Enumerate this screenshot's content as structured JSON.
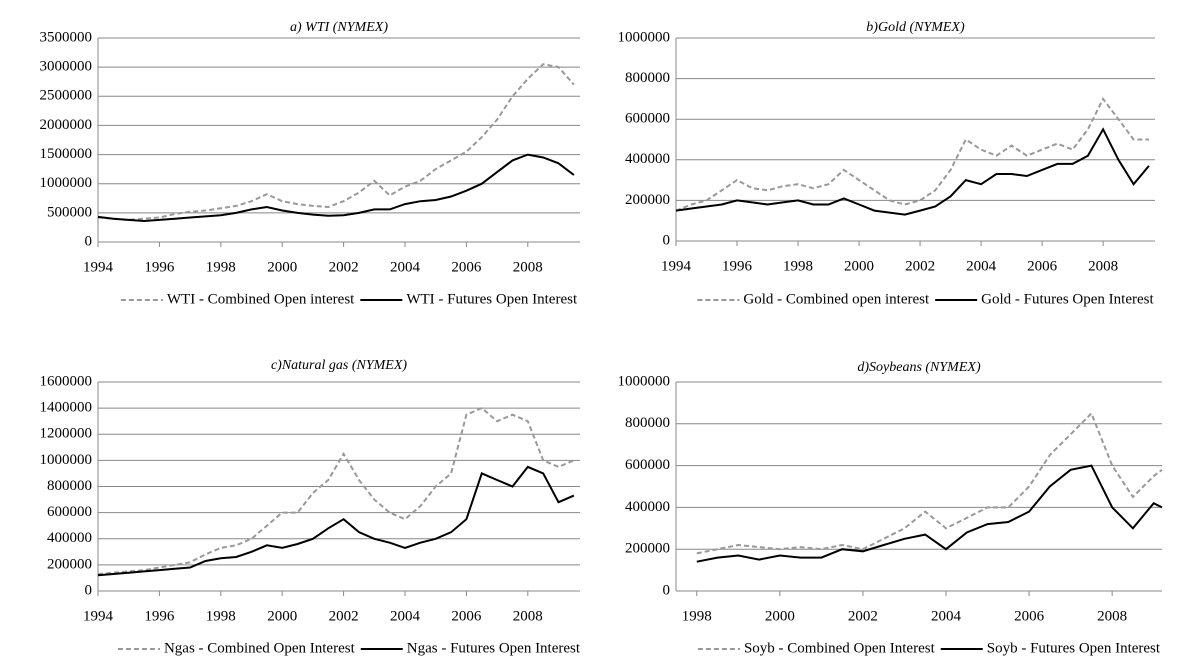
{
  "chart_data": [
    {
      "type": "line",
      "title": "a) WTI (NYMEX)",
      "xlim": [
        1994,
        2009.7
      ],
      "xticks": [
        1994,
        1996,
        1998,
        2000,
        2002,
        2004,
        2006,
        2008
      ],
      "ylim": [
        0,
        3500000
      ],
      "yticks": [
        0,
        500000,
        1000000,
        1500000,
        2000000,
        2500000,
        3000000,
        3500000
      ],
      "grid": true,
      "x": [
        1994,
        1994.5,
        1995,
        1995.5,
        1996,
        1996.5,
        1997,
        1997.5,
        1998,
        1998.5,
        1999,
        1999.5,
        2000,
        2000.5,
        2001,
        2001.5,
        2002,
        2002.5,
        2003,
        2003.5,
        2004,
        2004.5,
        2005,
        2005.5,
        2006,
        2006.5,
        2007,
        2007.5,
        2008,
        2008.5,
        2009,
        2009.5
      ],
      "series": [
        {
          "name": "WTI - Combined Open interest",
          "color": "#999999",
          "style": "dashed",
          "values": [
            420000,
            400000,
            380000,
            400000,
            420000,
            480000,
            520000,
            540000,
            580000,
            620000,
            700000,
            820000,
            700000,
            650000,
            620000,
            600000,
            700000,
            850000,
            1050000,
            800000,
            950000,
            1050000,
            1250000,
            1400000,
            1550000,
            1800000,
            2100000,
            2500000,
            2800000,
            3050000,
            3000000,
            2700000
          ]
        },
        {
          "name": "WTI - Futures Open Interest",
          "color": "#000000",
          "style": "solid",
          "values": [
            430000,
            400000,
            380000,
            360000,
            380000,
            400000,
            420000,
            440000,
            460000,
            500000,
            560000,
            600000,
            540000,
            500000,
            470000,
            450000,
            460000,
            500000,
            560000,
            560000,
            650000,
            700000,
            720000,
            780000,
            880000,
            1000000,
            1200000,
            1400000,
            1500000,
            1450000,
            1350000,
            1150000
          ]
        }
      ]
    },
    {
      "type": "line",
      "title": "b)Gold (NYMEX)",
      "xlim": [
        1994,
        2009.7
      ],
      "xticks": [
        1994,
        1996,
        1998,
        2000,
        2002,
        2004,
        2006,
        2008
      ],
      "ylim": [
        0,
        1000000
      ],
      "yticks": [
        0,
        200000,
        400000,
        600000,
        800000,
        1000000
      ],
      "grid": true,
      "x": [
        1994,
        1994.5,
        1995,
        1995.5,
        1996,
        1996.5,
        1997,
        1997.5,
        1998,
        1998.5,
        1999,
        1999.5,
        2000,
        2000.5,
        2001,
        2001.5,
        2002,
        2002.5,
        2003,
        2003.5,
        2004,
        2004.5,
        2005,
        2005.5,
        2006,
        2006.5,
        2007,
        2007.5,
        2008,
        2008.5,
        2009,
        2009.5
      ],
      "series": [
        {
          "name": "Gold - Combined open interest",
          "color": "#999999",
          "style": "dashed",
          "values": [
            150000,
            180000,
            200000,
            250000,
            300000,
            260000,
            250000,
            270000,
            280000,
            260000,
            280000,
            350000,
            300000,
            250000,
            200000,
            180000,
            200000,
            250000,
            350000,
            500000,
            450000,
            420000,
            470000,
            420000,
            450000,
            480000,
            450000,
            550000,
            700000,
            600000,
            500000,
            500000
          ]
        },
        {
          "name": "Gold - Futures Open Interest",
          "color": "#000000",
          "style": "solid",
          "values": [
            150000,
            160000,
            170000,
            180000,
            200000,
            190000,
            180000,
            190000,
            200000,
            180000,
            180000,
            210000,
            180000,
            150000,
            140000,
            130000,
            150000,
            170000,
            220000,
            300000,
            280000,
            330000,
            330000,
            320000,
            350000,
            380000,
            380000,
            420000,
            550000,
            400000,
            280000,
            370000
          ]
        }
      ]
    },
    {
      "type": "line",
      "title": "c)Natural gas (NYMEX)",
      "xlim": [
        1994,
        2009.7
      ],
      "xticks": [
        1994,
        1996,
        1998,
        2000,
        2002,
        2004,
        2006,
        2008
      ],
      "ylim": [
        0,
        1600000
      ],
      "yticks": [
        0,
        200000,
        400000,
        600000,
        800000,
        1000000,
        1200000,
        1400000,
        1600000
      ],
      "grid": true,
      "x": [
        1994,
        1994.5,
        1995,
        1995.5,
        1996,
        1996.5,
        1997,
        1997.5,
        1998,
        1998.5,
        1999,
        1999.5,
        2000,
        2000.5,
        2001,
        2001.5,
        2002,
        2002.5,
        2003,
        2003.5,
        2004,
        2004.5,
        2005,
        2005.5,
        2006,
        2006.5,
        2007,
        2007.5,
        2008,
        2008.5,
        2009,
        2009.5
      ],
      "series": [
        {
          "name": "Ngas - Combined Open Interest",
          "color": "#999999",
          "style": "dashed",
          "values": [
            130000,
            140000,
            150000,
            160000,
            180000,
            200000,
            220000,
            280000,
            330000,
            350000,
            400000,
            500000,
            600000,
            600000,
            750000,
            850000,
            1050000,
            850000,
            700000,
            600000,
            550000,
            650000,
            800000,
            900000,
            1350000,
            1400000,
            1300000,
            1350000,
            1300000,
            1000000,
            950000,
            1000000
          ]
        },
        {
          "name": "Ngas - Futures Open Interest",
          "color": "#000000",
          "style": "solid",
          "values": [
            120000,
            130000,
            140000,
            150000,
            160000,
            170000,
            180000,
            230000,
            250000,
            260000,
            300000,
            350000,
            330000,
            360000,
            400000,
            480000,
            550000,
            450000,
            400000,
            370000,
            330000,
            370000,
            400000,
            450000,
            550000,
            900000,
            850000,
            800000,
            950000,
            900000,
            680000,
            730000
          ]
        }
      ]
    },
    {
      "type": "line",
      "title": "d)Soybeans (NYMEX)",
      "xlim": [
        1997.5,
        2009.2
      ],
      "xticks": [
        1998,
        2000,
        2002,
        2004,
        2006,
        2008
      ],
      "ylim": [
        0,
        1000000
      ],
      "yticks": [
        0,
        200000,
        400000,
        600000,
        800000,
        1000000
      ],
      "grid": true,
      "x": [
        1998,
        1998.5,
        1999,
        1999.5,
        2000,
        2000.5,
        2001,
        2001.5,
        2002,
        2002.5,
        2003,
        2003.5,
        2004,
        2004.5,
        2005,
        2005.5,
        2006,
        2006.5,
        2007,
        2007.5,
        2008,
        2008.5,
        2009,
        2009.2
      ],
      "series": [
        {
          "name": "Soyb - Combined Open Interest",
          "color": "#999999",
          "style": "dashed",
          "values": [
            180000,
            200000,
            220000,
            210000,
            200000,
            210000,
            200000,
            220000,
            200000,
            250000,
            300000,
            380000,
            300000,
            350000,
            400000,
            400000,
            500000,
            650000,
            750000,
            850000,
            600000,
            450000,
            550000,
            580000
          ]
        },
        {
          "name": "Soyb - Futures Open Interest",
          "color": "#000000",
          "style": "solid",
          "values": [
            140000,
            160000,
            170000,
            150000,
            170000,
            160000,
            160000,
            200000,
            190000,
            220000,
            250000,
            270000,
            200000,
            280000,
            320000,
            330000,
            380000,
            500000,
            580000,
            600000,
            400000,
            300000,
            420000,
            400000
          ]
        }
      ]
    }
  ]
}
